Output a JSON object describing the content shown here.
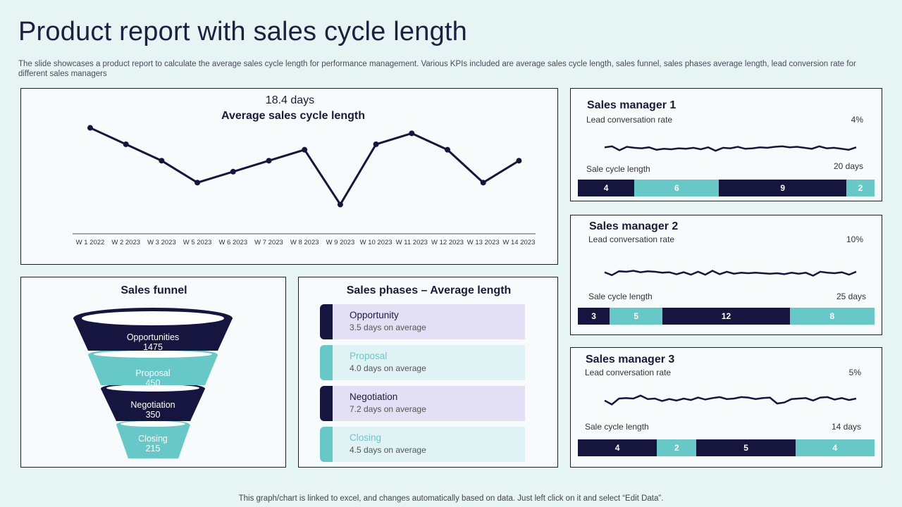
{
  "page": {
    "title": "Product report with sales cycle length",
    "description": "The slide showcases a product report to calculate the average sales cycle length for performance management. Various KPIs included are average sales cycle length, sales funnel, sales phases average length, lead conversion rate for different sales managers",
    "footer": "This graph/chart is linked to excel, and changes automatically based on data. Just left click on it and select “Edit Data”."
  },
  "colors": {
    "dark": "#161540",
    "teal": "#67c8c8",
    "lavender": "#e3dff5",
    "light_teal": "#dff3f4",
    "background": "#e6f4f4"
  },
  "chart_data": [
    {
      "type": "line",
      "title": "Average sales cycle length",
      "subtitle": "18.4 days",
      "categories": [
        "W 1 2022",
        "W 2 2023",
        "W 3 2023",
        "W 5 2023",
        "W 6 2023",
        "W 7 2023",
        "W 8 2023",
        "W 9 2023",
        "W 10 2023",
        "W 11 2023",
        "W 12 2023",
        "W 13 2023",
        "W 14 2023"
      ],
      "series": [
        {
          "values": [
            24,
            21,
            18,
            14,
            16,
            18,
            20,
            10,
            21,
            23,
            20,
            14,
            18
          ]
        }
      ],
      "ylim": [
        0,
        30
      ],
      "grid": false
    },
    {
      "type": "bar",
      "title": "Sales funnel",
      "categories": [
        "Opportunities",
        "Proposal",
        "Negotiation",
        "Closing"
      ],
      "values": [
        1475,
        450,
        350,
        215
      ]
    },
    {
      "type": "table",
      "title": "Sales phases – Average length",
      "rows": [
        {
          "name": "Opportunity",
          "sub": "3.5 days on average"
        },
        {
          "name": "Proposal",
          "sub": "4.0 days on average"
        },
        {
          "name": "Negotiation",
          "sub": "7.2 days on average"
        },
        {
          "name": "Closing",
          "sub": "4.5 days on average"
        }
      ]
    },
    {
      "type": "line",
      "title": "Sales manager 1",
      "lead_label": "Lead conversation rate",
      "lead_value": "4%",
      "cycle_label": "Sale cycle length",
      "cycle_value": "20 days",
      "sparkline": [
        5.4,
        5.6,
        4.8,
        5.5,
        5.3,
        5.2,
        5.4,
        4.9,
        5.1,
        5.0,
        5.2,
        5.1,
        5.3,
        5.0,
        5.4,
        4.7,
        5.3,
        5.2,
        5.5,
        5.1,
        5.2,
        5.4,
        5.3,
        5.5,
        5.6,
        5.4,
        5.5,
        5.3,
        5.1,
        5.6,
        5.2,
        5.3,
        5.1,
        4.9,
        5.4
      ],
      "segments": [
        4,
        6,
        9,
        2
      ]
    },
    {
      "type": "line",
      "title": "Sales manager 2",
      "lead_label": "Lead conversation rate",
      "lead_value": "10%",
      "cycle_label": "Sale cycle length",
      "cycle_value": "25 days",
      "sparkline": [
        5.2,
        4.6,
        5.4,
        5.3,
        5.5,
        5.2,
        5.4,
        5.3,
        5.1,
        5.2,
        4.8,
        5.2,
        4.7,
        5.3,
        4.7,
        5.5,
        4.8,
        5.3,
        4.9,
        5.1,
        5.0,
        5.1,
        5.0,
        4.9,
        5.0,
        4.8,
        5.1,
        4.9,
        5.1,
        4.5,
        5.3,
        5.1,
        5.0,
        5.2,
        4.7,
        5.3
      ],
      "segments": [
        3,
        5,
        12,
        8
      ]
    },
    {
      "type": "line",
      "title": "Sales manager 3",
      "lead_label": "Lead conversation rate",
      "lead_value": "5%",
      "cycle_label": "Sale cycle length",
      "cycle_value": "14 days",
      "sparkline": [
        4.6,
        3.8,
        5.0,
        5.1,
        5.0,
        5.6,
        4.9,
        5.0,
        4.5,
        4.9,
        4.6,
        5.0,
        4.7,
        5.2,
        4.8,
        5.1,
        5.3,
        4.9,
        5.0,
        5.3,
        5.2,
        4.9,
        5.1,
        5.2,
        4.0,
        4.2,
        4.9,
        5.0,
        5.1,
        4.6,
        5.2,
        5.3,
        4.8,
        5.1,
        4.7,
        5.0
      ],
      "segments": [
        4,
        2,
        5,
        4
      ]
    }
  ]
}
